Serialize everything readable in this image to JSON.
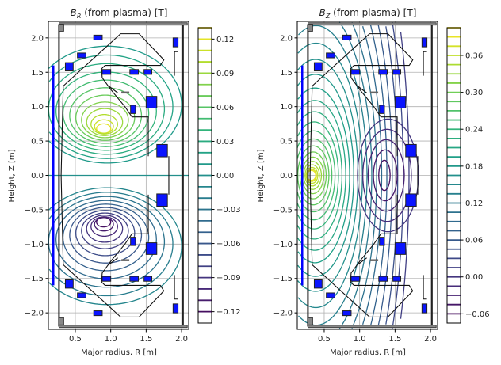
{
  "chart_data": [
    {
      "type": "contour",
      "title": {
        "symbol": "B",
        "subscript": "R",
        "text": " (from plasma) [T]"
      },
      "xlabel": "Major radius, R [m]",
      "ylabel": "Height, Z [m]",
      "xlim": [
        0.12,
        2.1
      ],
      "ylim": [
        -2.24,
        2.24
      ],
      "xticks": [
        "0.5",
        "1.0",
        "1.5",
        "2.0"
      ],
      "xtick_values": [
        0.5,
        1.0,
        1.5,
        2.0
      ],
      "yticks": [
        "−2.0",
        "−1.5",
        "−1.0",
        "−0.5",
        "0.0",
        "0.5",
        "1.0",
        "1.5",
        "2.0"
      ],
      "ytick_values": [
        -2.0,
        -1.5,
        -1.0,
        -0.5,
        0.0,
        0.5,
        1.0,
        1.5,
        2.0
      ],
      "grid": true,
      "colormap": "viridis",
      "levels": {
        "min": -0.13,
        "max": 0.13,
        "step": 0.01
      },
      "colorbar_ticks": [
        "−0.12",
        "−0.09",
        "−0.06",
        "−0.03",
        "0.00",
        "0.03",
        "0.06",
        "0.09",
        "0.12"
      ],
      "colorbar_tick_values": [
        -0.12,
        -0.09,
        -0.06,
        -0.03,
        0.0,
        0.03,
        0.06,
        0.09,
        0.12
      ],
      "extrema": [
        {
          "R": 0.9,
          "Z": 0.68,
          "value": 0.125
        },
        {
          "R": 0.9,
          "Z": -0.68,
          "value": -0.125
        }
      ]
    },
    {
      "type": "contour",
      "title": {
        "symbol": "B",
        "subscript": "Z",
        "text": " (from plasma) [T]"
      },
      "xlabel": "Major radius, R [m]",
      "ylabel": "Height, Z [m]",
      "xlim": [
        0.12,
        2.1
      ],
      "ylim": [
        -2.24,
        2.24
      ],
      "xticks": [
        "0.5",
        "1.0",
        "1.5",
        "2.0"
      ],
      "xtick_values": [
        0.5,
        1.0,
        1.5,
        2.0
      ],
      "yticks": [
        "−2.0",
        "−1.5",
        "−1.0",
        "−0.5",
        "0.0",
        "0.5",
        "1.0",
        "1.5",
        "2.0"
      ],
      "ytick_values": [
        -2.0,
        -1.5,
        -1.0,
        -0.5,
        0.0,
        0.5,
        1.0,
        1.5,
        2.0
      ],
      "grid": true,
      "colormap": "viridis",
      "levels": {
        "min": -0.075,
        "max": 0.405,
        "step": 0.015
      },
      "colorbar_ticks": [
        "−0.06",
        "0.00",
        "0.06",
        "0.12",
        "0.18",
        "0.24",
        "0.30",
        "0.36"
      ],
      "colorbar_tick_values": [
        -0.06,
        0.0,
        0.06,
        0.12,
        0.18,
        0.24,
        0.3,
        0.36
      ],
      "extrema": [
        {
          "R": 0.4,
          "Z": 0.0,
          "value": 0.39
        },
        {
          "R": 1.35,
          "Z": 0.0,
          "value": -0.07
        }
      ]
    }
  ]
}
